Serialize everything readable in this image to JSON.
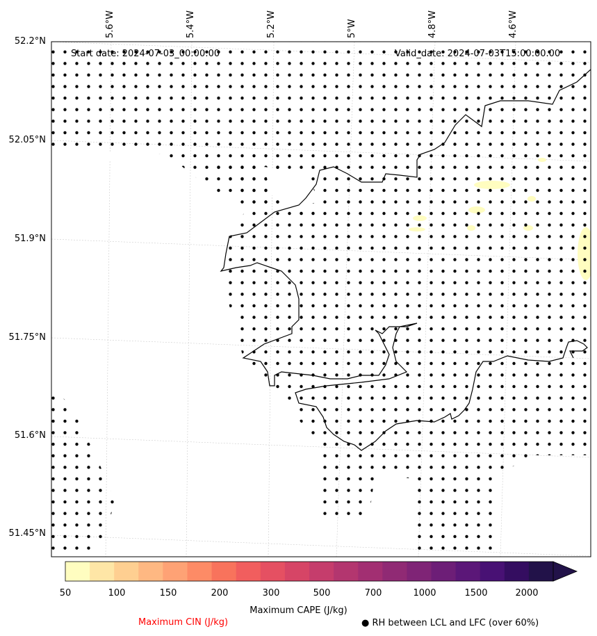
{
  "header": {
    "start_date": "Start date: 2024-07-03_00:00:00",
    "valid_date": "Valid_date: 2024-07-03T15:00:00.00"
  },
  "axes": {
    "longitude_labels": [
      "5.6°W",
      "5.4°W",
      "5.2°W",
      "5°W",
      "4.8°W",
      "4.6°W"
    ],
    "latitude_labels": [
      "52.2°N",
      "52.05°N",
      "51.9°N",
      "51.75°N",
      "51.6°N",
      "51.45°N"
    ]
  },
  "colorbar": {
    "ticks": [
      "50",
      "100",
      "150",
      "200",
      "300",
      "500",
      "700",
      "1000",
      "1500",
      "2000"
    ],
    "label": "Maximum CAPE (J/kg)",
    "colors": [
      "#fffdc0",
      "#fee6a6",
      "#fecf91",
      "#feb882",
      "#fea275",
      "#fd8b66",
      "#f8735c",
      "#f15e5e",
      "#e55062",
      "#d64566",
      "#c53d6c",
      "#b3366f",
      "#a22f72",
      "#902a74",
      "#7f2476",
      "#6d1e77",
      "#5b1778",
      "#481174",
      "#340d60",
      "#221249"
    ]
  },
  "legend": {
    "cin_label": "Maximum CIN (J/kg)",
    "cin_color": "#ff0000",
    "rh_label": "● RH between LCL and LFC (over 60%)"
  },
  "icons": {
    "rh_marker": "black-dot-icon"
  }
}
